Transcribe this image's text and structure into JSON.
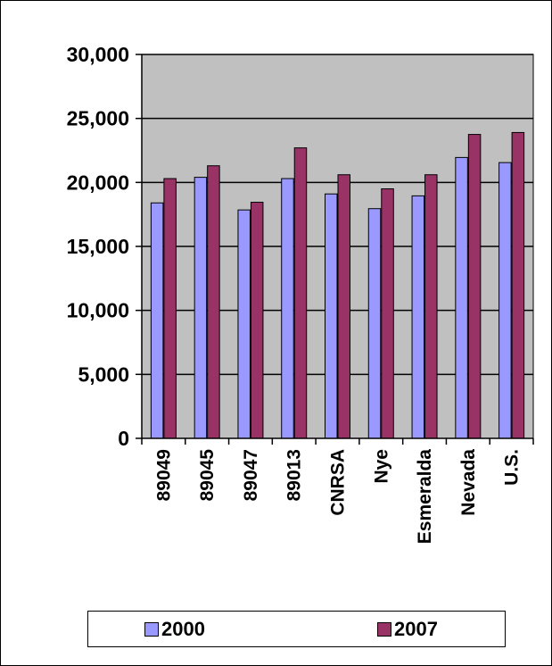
{
  "chart_data": {
    "type": "bar",
    "title": "",
    "xlabel": "",
    "ylabel": "",
    "ylim": [
      0,
      30000
    ],
    "yticks": [
      0,
      5000,
      10000,
      15000,
      20000,
      25000,
      30000
    ],
    "ytick_labels": [
      "0",
      "5,000",
      "10,000",
      "15,000",
      "20,000",
      "25,000",
      "30,000"
    ],
    "categories": [
      "89049",
      "89045",
      "89047",
      "89013",
      "CNRSA",
      "Nye",
      "Esmeralda",
      "Nevada",
      "U.S."
    ],
    "series": [
      {
        "name": "2000",
        "color": "#9999ff",
        "values": [
          18400,
          20400,
          17850,
          20300,
          19100,
          17950,
          18950,
          21950,
          21550
        ]
      },
      {
        "name": "2007",
        "color": "#993366",
        "values": [
          20300,
          21300,
          18450,
          22700,
          20600,
          19500,
          20600,
          23750,
          23900
        ]
      }
    ],
    "grid": true,
    "plot_background": "#c0c0c0",
    "legend_position": "bottom"
  }
}
